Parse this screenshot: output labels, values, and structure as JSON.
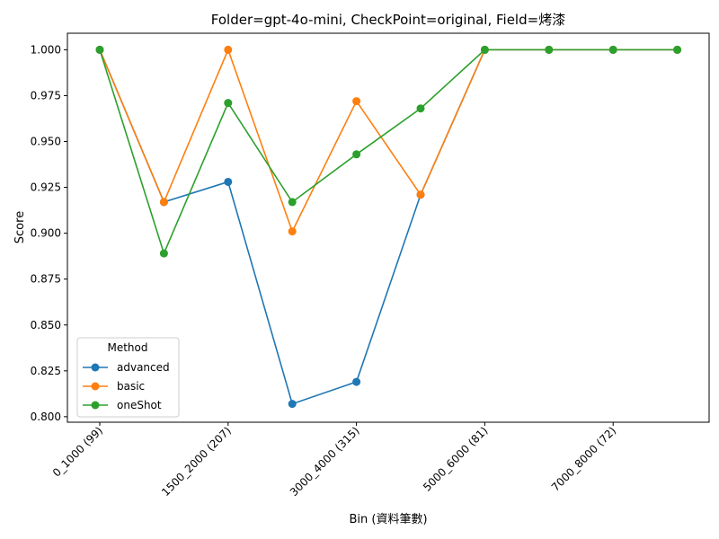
{
  "chart_data": {
    "type": "line",
    "title": "Folder=gpt-4o-mini, CheckPoint=original, Field=烤漆",
    "xlabel": "Bin (資料筆數)",
    "ylabel": "Score",
    "ylim": [
      0.797,
      1.009
    ],
    "yticks": [
      0.8,
      0.825,
      0.85,
      0.875,
      0.9,
      0.925,
      0.95,
      0.975,
      1.0
    ],
    "ytick_labels": [
      "0.800",
      "0.825",
      "0.850",
      "0.875",
      "0.900",
      "0.925",
      "0.950",
      "0.975",
      "1.000"
    ],
    "categories": [
      "0_1000 (99)",
      "",
      "1500_2000 (207)",
      "",
      "3000_4000 (315)",
      "",
      "5000_6000 (81)",
      "",
      "7000_8000 (72)",
      ""
    ],
    "x_tick_labels": [
      {
        "index": 0,
        "label": "0_1000 (99)"
      },
      {
        "index": 2,
        "label": "1500_2000 (207)"
      },
      {
        "index": 4,
        "label": "3000_4000 (315)"
      },
      {
        "index": 6,
        "label": "5000_6000 (81)"
      },
      {
        "index": 8,
        "label": "7000_8000 (72)"
      }
    ],
    "series": [
      {
        "name": "advanced",
        "color": "#1f77b4",
        "values": [
          1.0,
          0.917,
          0.928,
          0.807,
          0.819,
          0.921,
          1.0,
          1.0,
          1.0,
          1.0
        ]
      },
      {
        "name": "basic",
        "color": "#ff7f0e",
        "values": [
          1.0,
          0.917,
          1.0,
          0.901,
          0.972,
          0.921,
          1.0,
          1.0,
          1.0,
          1.0
        ]
      },
      {
        "name": "oneShot",
        "color": "#2ca02c",
        "values": [
          1.0,
          0.889,
          0.971,
          0.917,
          0.943,
          0.968,
          1.0,
          1.0,
          1.0,
          1.0
        ]
      }
    ],
    "legend": {
      "title": "Method",
      "placement": "lower-left"
    },
    "grid": false
  }
}
